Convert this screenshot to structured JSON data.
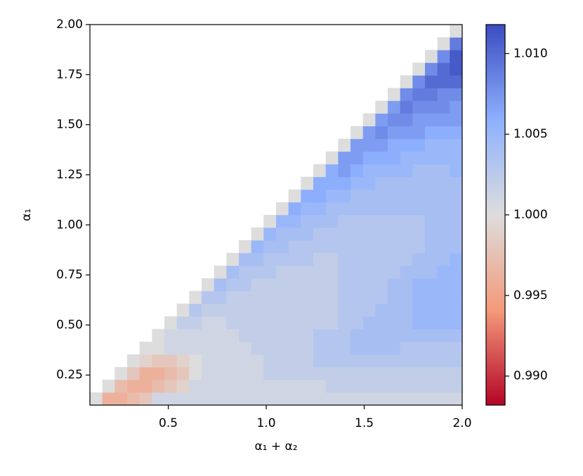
{
  "chart_data": {
    "type": "heatmap",
    "x_label": "α₁ + α₂",
    "y_label": "α₁",
    "xlim": [
      0.1,
      2.0
    ],
    "ylim": [
      0.1,
      2.0
    ],
    "xticks": [
      {
        "value": 0.5,
        "label": "0.5"
      },
      {
        "value": 1.0,
        "label": "1.0"
      },
      {
        "value": 1.5,
        "label": "1.5"
      },
      {
        "value": 2.0,
        "label": "2.0"
      }
    ],
    "yticks": [
      {
        "value": 0.25,
        "label": "0.25"
      },
      {
        "value": 0.5,
        "label": "0.50"
      },
      {
        "value": 0.75,
        "label": "0.75"
      },
      {
        "value": 1.0,
        "label": "1.00"
      },
      {
        "value": 1.25,
        "label": "1.25"
      },
      {
        "value": 1.5,
        "label": "1.50"
      },
      {
        "value": 1.75,
        "label": "1.75"
      },
      {
        "value": 2.0,
        "label": "2.00"
      }
    ],
    "colormap": "coolwarm_r",
    "clim": [
      0.9882,
      1.0118
    ],
    "cticks": [
      {
        "value": 0.99,
        "label": "0.990"
      },
      {
        "value": 0.995,
        "label": "0.995"
      },
      {
        "value": 1.0,
        "label": "1.000"
      },
      {
        "value": 1.005,
        "label": "1.005"
      },
      {
        "value": 1.01,
        "label": "1.010"
      }
    ],
    "z": [
      [
        1.0,
        0.996,
        0.996,
        0.997,
        0.998,
        1.001,
        1.001,
        1.001,
        1.001,
        1.001,
        1.001,
        1.001,
        1.001,
        1.001,
        1.001,
        1.001,
        1.001,
        1.001,
        1.001,
        1.001,
        1.001,
        1.001,
        1.001,
        1.001,
        1.001,
        1.001,
        1.001,
        1.001,
        1.001,
        1.001
      ],
      [
        null,
        1.0,
        0.997,
        0.996,
        0.996,
        0.997,
        0.998,
        0.999,
        1.001,
        1.001,
        1.001,
        1.001,
        1.001,
        1.001,
        1.001,
        1.001,
        1.001,
        1.001,
        1.001,
        1.002,
        1.002,
        1.002,
        1.002,
        1.002,
        1.002,
        1.002,
        1.002,
        1.002,
        1.002,
        1.002
      ],
      [
        null,
        null,
        1.0,
        0.998,
        0.996,
        0.996,
        0.997,
        0.998,
        1.0,
        1.001,
        1.001,
        1.001,
        1.001,
        1.001,
        1.002,
        1.002,
        1.002,
        1.002,
        1.002,
        1.002,
        1.002,
        1.002,
        1.002,
        1.002,
        1.002,
        1.002,
        1.002,
        1.002,
        1.002,
        1.002
      ],
      [
        null,
        null,
        null,
        1.0,
        0.999,
        0.998,
        0.998,
        0.999,
        1.0,
        1.001,
        1.001,
        1.001,
        1.001,
        1.001,
        1.002,
        1.002,
        1.002,
        1.002,
        1.003,
        1.003,
        1.003,
        1.003,
        1.003,
        1.003,
        1.003,
        1.003,
        1.003,
        1.003,
        1.003,
        1.003
      ],
      [
        null,
        null,
        null,
        null,
        1.0,
        1.0,
        1.001,
        1.001,
        1.001,
        1.001,
        1.001,
        1.001,
        1.001,
        1.002,
        1.002,
        1.002,
        1.002,
        1.002,
        1.003,
        1.003,
        1.003,
        1.004,
        1.004,
        1.004,
        1.004,
        1.003,
        1.003,
        1.003,
        1.003,
        1.003
      ],
      [
        null,
        null,
        null,
        null,
        null,
        1.0,
        1.001,
        1.001,
        1.001,
        1.001,
        1.001,
        1.001,
        1.002,
        1.002,
        1.002,
        1.002,
        1.002,
        1.002,
        1.003,
        1.003,
        1.003,
        1.004,
        1.004,
        1.004,
        1.004,
        1.004,
        1.004,
        1.004,
        1.004,
        1.004
      ],
      [
        null,
        null,
        null,
        null,
        null,
        null,
        1.0,
        1.002,
        1.002,
        1.001,
        1.001,
        1.002,
        1.002,
        1.002,
        1.002,
        1.002,
        1.002,
        1.002,
        1.002,
        1.002,
        1.003,
        1.003,
        1.004,
        1.004,
        1.004,
        1.004,
        1.005,
        1.005,
        1.005,
        1.005
      ],
      [
        null,
        null,
        null,
        null,
        null,
        null,
        null,
        1.0,
        1.003,
        1.002,
        1.002,
        1.002,
        1.002,
        1.002,
        1.002,
        1.002,
        1.002,
        1.002,
        1.002,
        1.002,
        1.003,
        1.003,
        1.003,
        1.004,
        1.004,
        1.004,
        1.005,
        1.005,
        1.005,
        1.005
      ],
      [
        null,
        null,
        null,
        null,
        null,
        null,
        null,
        null,
        1.0,
        1.003,
        1.003,
        1.002,
        1.002,
        1.002,
        1.002,
        1.002,
        1.002,
        1.002,
        1.002,
        1.002,
        1.003,
        1.003,
        1.003,
        1.003,
        1.004,
        1.004,
        1.005,
        1.005,
        1.005,
        1.005
      ],
      [
        null,
        null,
        null,
        null,
        null,
        null,
        null,
        null,
        null,
        1.0,
        1.004,
        1.003,
        1.003,
        1.002,
        1.002,
        1.002,
        1.002,
        1.002,
        1.002,
        1.002,
        1.003,
        1.003,
        1.003,
        1.003,
        1.004,
        1.004,
        1.005,
        1.005,
        1.005,
        1.005
      ],
      [
        null,
        null,
        null,
        null,
        null,
        null,
        null,
        null,
        null,
        null,
        1.0,
        1.004,
        1.003,
        1.003,
        1.003,
        1.002,
        1.002,
        1.002,
        1.002,
        1.002,
        1.003,
        1.003,
        1.003,
        1.003,
        1.003,
        1.004,
        1.004,
        1.004,
        1.005,
        1.005
      ],
      [
        null,
        null,
        null,
        null,
        null,
        null,
        null,
        null,
        null,
        null,
        null,
        1.0,
        1.004,
        1.004,
        1.003,
        1.003,
        1.003,
        1.003,
        1.002,
        1.002,
        1.003,
        1.003,
        1.003,
        1.003,
        1.003,
        1.003,
        1.004,
        1.004,
        1.004,
        1.005
      ],
      [
        null,
        null,
        null,
        null,
        null,
        null,
        null,
        null,
        null,
        null,
        null,
        null,
        1.0,
        1.005,
        1.004,
        1.004,
        1.003,
        1.003,
        1.003,
        1.003,
        1.003,
        1.003,
        1.003,
        1.003,
        1.003,
        1.003,
        1.003,
        1.004,
        1.004,
        1.004
      ],
      [
        null,
        null,
        null,
        null,
        null,
        null,
        null,
        null,
        null,
        null,
        null,
        null,
        null,
        1.0,
        1.005,
        1.004,
        1.004,
        1.004,
        1.003,
        1.003,
        1.003,
        1.003,
        1.003,
        1.003,
        1.003,
        1.003,
        1.003,
        1.004,
        1.004,
        1.004
      ],
      [
        null,
        null,
        null,
        null,
        null,
        null,
        null,
        null,
        null,
        null,
        null,
        null,
        null,
        null,
        1.0,
        1.005,
        1.005,
        1.004,
        1.004,
        1.004,
        1.003,
        1.003,
        1.003,
        1.003,
        1.003,
        1.003,
        1.003,
        1.004,
        1.004,
        1.004
      ],
      [
        null,
        null,
        null,
        null,
        null,
        null,
        null,
        null,
        null,
        null,
        null,
        null,
        null,
        null,
        null,
        1.0,
        1.006,
        1.005,
        1.005,
        1.004,
        1.004,
        1.004,
        1.004,
        1.004,
        1.004,
        1.004,
        1.004,
        1.004,
        1.004,
        1.004
      ],
      [
        null,
        null,
        null,
        null,
        null,
        null,
        null,
        null,
        null,
        null,
        null,
        null,
        null,
        null,
        null,
        null,
        1.0,
        1.006,
        1.006,
        1.005,
        1.005,
        1.004,
        1.004,
        1.004,
        1.004,
        1.004,
        1.004,
        1.004,
        1.004,
        1.004
      ],
      [
        null,
        null,
        null,
        null,
        null,
        null,
        null,
        null,
        null,
        null,
        null,
        null,
        null,
        null,
        null,
        null,
        null,
        1.0,
        1.006,
        1.006,
        1.006,
        1.005,
        1.005,
        1.004,
        1.004,
        1.004,
        1.004,
        1.004,
        1.004,
        1.004
      ],
      [
        null,
        null,
        null,
        null,
        null,
        null,
        null,
        null,
        null,
        null,
        null,
        null,
        null,
        null,
        null,
        null,
        null,
        null,
        1.0,
        1.006,
        1.007,
        1.006,
        1.005,
        1.005,
        1.005,
        1.005,
        1.004,
        1.004,
        1.004,
        1.005
      ],
      [
        null,
        null,
        null,
        null,
        null,
        null,
        null,
        null,
        null,
        null,
        null,
        null,
        null,
        null,
        null,
        null,
        null,
        null,
        null,
        1.0,
        1.007,
        1.007,
        1.006,
        1.006,
        1.006,
        1.005,
        1.005,
        1.005,
        1.005,
        1.005
      ],
      [
        null,
        null,
        null,
        null,
        null,
        null,
        null,
        null,
        null,
        null,
        null,
        null,
        null,
        null,
        null,
        null,
        null,
        null,
        null,
        null,
        1.0,
        1.007,
        1.007,
        1.007,
        1.006,
        1.006,
        1.006,
        1.005,
        1.005,
        1.005
      ],
      [
        null,
        null,
        null,
        null,
        null,
        null,
        null,
        null,
        null,
        null,
        null,
        null,
        null,
        null,
        null,
        null,
        null,
        null,
        null,
        null,
        null,
        1.0,
        1.007,
        1.008,
        1.007,
        1.007,
        1.007,
        1.006,
        1.006,
        1.006
      ],
      [
        null,
        null,
        null,
        null,
        null,
        null,
        null,
        null,
        null,
        null,
        null,
        null,
        null,
        null,
        null,
        null,
        null,
        null,
        null,
        null,
        null,
        null,
        1.0,
        1.007,
        1.008,
        1.008,
        1.007,
        1.007,
        1.007,
        1.007
      ],
      [
        null,
        null,
        null,
        null,
        null,
        null,
        null,
        null,
        null,
        null,
        null,
        null,
        null,
        null,
        null,
        null,
        null,
        null,
        null,
        null,
        null,
        null,
        null,
        1.0,
        1.007,
        1.009,
        1.008,
        1.008,
        1.008,
        1.007
      ],
      [
        null,
        null,
        null,
        null,
        null,
        null,
        null,
        null,
        null,
        null,
        null,
        null,
        null,
        null,
        null,
        null,
        null,
        null,
        null,
        null,
        null,
        null,
        null,
        null,
        1.0,
        1.008,
        1.009,
        1.009,
        1.008,
        1.008
      ],
      [
        null,
        null,
        null,
        null,
        null,
        null,
        null,
        null,
        null,
        null,
        null,
        null,
        null,
        null,
        null,
        null,
        null,
        null,
        null,
        null,
        null,
        null,
        null,
        null,
        null,
        1.0,
        1.008,
        1.01,
        1.01,
        1.01
      ],
      [
        null,
        null,
        null,
        null,
        null,
        null,
        null,
        null,
        null,
        null,
        null,
        null,
        null,
        null,
        null,
        null,
        null,
        null,
        null,
        null,
        null,
        null,
        null,
        null,
        null,
        null,
        1.0,
        1.008,
        1.01,
        1.011
      ],
      [
        null,
        null,
        null,
        null,
        null,
        null,
        null,
        null,
        null,
        null,
        null,
        null,
        null,
        null,
        null,
        null,
        null,
        null,
        null,
        null,
        null,
        null,
        null,
        null,
        null,
        null,
        null,
        1.0,
        1.008,
        1.011
      ],
      [
        null,
        null,
        null,
        null,
        null,
        null,
        null,
        null,
        null,
        null,
        null,
        null,
        null,
        null,
        null,
        null,
        null,
        null,
        null,
        null,
        null,
        null,
        null,
        null,
        null,
        null,
        null,
        null,
        1.0,
        1.009
      ],
      [
        null,
        null,
        null,
        null,
        null,
        null,
        null,
        null,
        null,
        null,
        null,
        null,
        null,
        null,
        null,
        null,
        null,
        null,
        null,
        null,
        null,
        null,
        null,
        null,
        null,
        null,
        null,
        null,
        null,
        1.0
      ]
    ]
  }
}
